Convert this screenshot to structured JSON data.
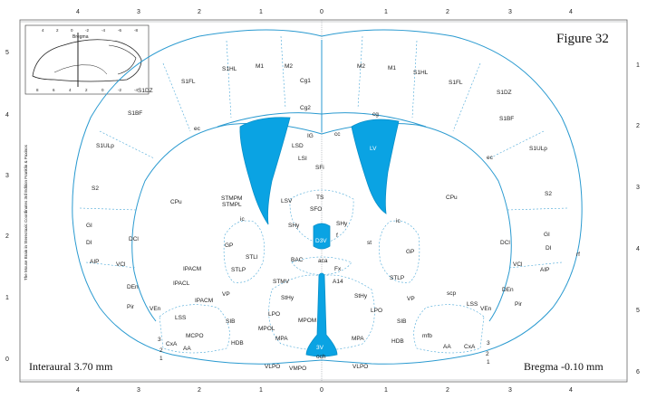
{
  "figure_title": "Figure 32",
  "interaural": "Interaural 3.70 mm",
  "bregma": "Bregma -0.10 mm",
  "side_credit": "The Mouse Brain in Stereotaxic Coordinates 3rd Edition  Franklin & Paxinos",
  "inset": {
    "label": "Bregma",
    "top_ticks": [
      "4",
      "2",
      "0",
      "-2",
      "-4",
      "-6",
      "-8"
    ],
    "bottom_ticks": [
      "8",
      "6",
      "4",
      "2",
      "0",
      "-2",
      "-4"
    ]
  },
  "ticks": {
    "top": [
      "4",
      "3",
      "2",
      "1",
      "0",
      "1",
      "2",
      "3",
      "4"
    ],
    "bottom": [
      "4",
      "3",
      "2",
      "1",
      "0",
      "1",
      "2",
      "3",
      "4"
    ],
    "left": [
      "5",
      "4",
      "3",
      "2",
      "1",
      "0"
    ],
    "right": [
      "1",
      "2",
      "3",
      "4",
      "5",
      "6"
    ]
  },
  "colors": {
    "outline": "#2a9ad0",
    "ventricle": "#0aa3e3",
    "grid": "#9aa0a6"
  },
  "labels": {
    "m1_l": "M1",
    "m2_l": "M2",
    "m2_r": "M2",
    "m1_r": "M1",
    "s1hl_l": "S1HL",
    "s1hl_r": "S1HL",
    "s1fl_l": "S1FL",
    "s1fl_r": "S1FL",
    "s1dz_l": "S1DZ",
    "s1dz_r": "S1DZ",
    "s1bf_l": "S1BF",
    "s1bf_r": "S1BF",
    "s1ulp_l": "S1ULp",
    "s1ulp_r": "S1ULp",
    "s2_l": "S2",
    "s2_r": "S2",
    "cg1": "Cg1",
    "cg2": "Cg2",
    "cg": "cg",
    "ec_l": "ec",
    "ec_r": "ec",
    "ig": "IG",
    "cc": "cc",
    "lsd": "LSD",
    "lsi": "LSI",
    "sfi": "SFi",
    "lv": "LV",
    "lsv": "LSV",
    "ts": "TS",
    "sfo": "SFO",
    "shy_l": "SHy",
    "shy_r": "SHy",
    "stmpm": "STMPM",
    "stmpl": "STMPL",
    "ic_l": "ic",
    "ic_r": "ic",
    "cpu_l": "CPu",
    "cpu_r": "CPu",
    "gi_l": "GI",
    "gi_r": "GI",
    "di_l": "DI",
    "di_r": "DI",
    "dci_l": "DCl",
    "dci_r": "DCl",
    "aip_l": "AIP",
    "aip_r": "AIP",
    "vci_l": "VCl",
    "vci_r": "VCl",
    "gp_l": "GP",
    "gp_r": "GP",
    "d3v": "D3V",
    "f": "f",
    "st": "st",
    "stli": "STLI",
    "bac": "BAC",
    "aca": "aca",
    "fx": "Fx",
    "stlp_l": "STLP",
    "stlp_r": "STLP",
    "ipacm": "IPACM",
    "ipacl": "IPACL",
    "ipacm2": "IPACM",
    "den_l": "DEn",
    "den_r": "DEn",
    "pir_l": "Pir",
    "pir_r": "Pir",
    "ven_l": "VEn",
    "ven_r": "VEn",
    "lss_l": "LSS",
    "lss_r": "LSS",
    "scp": "scp",
    "vp_l": "VP",
    "vp_r": "VP",
    "stmv": "STMV",
    "sthy_l": "StHy",
    "sthy_r": "StHy",
    "a14": "A14",
    "lpo_l": "LPO",
    "lpo_r": "LPO",
    "sib_l": "SIB",
    "sib_r": "SIB",
    "mcpo": "MCPO",
    "hdb_l": "HDB",
    "hdb_r": "HDB",
    "mfb": "mfb",
    "mpol": "MPOL",
    "mpom": "MPOM",
    "mpa_l": "MPA",
    "mpa_r": "MPA",
    "v3": "3V",
    "och": "och",
    "vlpo_l": "VLPO",
    "vlpo_r": "VLPO",
    "vmpo": "VMPO",
    "cxa_l": "CxA",
    "cxa_r": "CxA",
    "aa_l": "AA",
    "aa_r": "AA",
    "l3_l": "3",
    "l2_l": "2",
    "l1_l": "1",
    "l3_r": "3",
    "l2_r": "2",
    "l1_r": "1",
    "rf": "rf"
  }
}
